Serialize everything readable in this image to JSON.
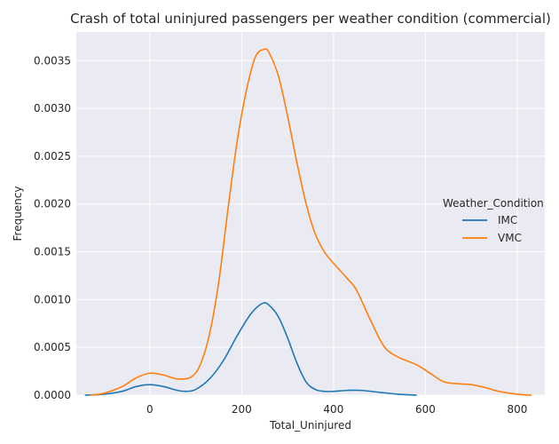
{
  "chart_data": {
    "type": "line",
    "title": "Crash of total uninjured passengers per weather condition (commercial)",
    "xlabel": "Total_Uninjured",
    "ylabel": "Frequency",
    "xlim": [
      -160,
      860
    ],
    "ylim": [
      0,
      0.0038
    ],
    "xticks": [
      0,
      200,
      400,
      600,
      800
    ],
    "xtick_labels": [
      "0",
      "200",
      "400",
      "600",
      "800"
    ],
    "yticks": [
      0,
      0.0005,
      0.001,
      0.0015,
      0.002,
      0.0025,
      0.003,
      0.0035
    ],
    "ytick_labels": [
      "0.0000",
      "0.0005",
      "0.0010",
      "0.0015",
      "0.0020",
      "0.0025",
      "0.0030",
      "0.0035"
    ],
    "grid": true,
    "legend": {
      "title": "Weather_Condition",
      "placement": "center-right"
    },
    "series": [
      {
        "name": "IMC",
        "color": "#1f77b4",
        "x": [
          -140,
          -100,
          -60,
          -30,
          0,
          30,
          60,
          80,
          100,
          130,
          160,
          190,
          220,
          245,
          260,
          280,
          300,
          320,
          340,
          360,
          380,
          400,
          430,
          460,
          500,
          540,
          580
        ],
        "y": [
          0,
          1e-05,
          4e-05,
          9e-05,
          0.00011,
          9e-05,
          5e-05,
          4e-05,
          6e-05,
          0.00017,
          0.00036,
          0.00062,
          0.00085,
          0.00096,
          0.00094,
          0.00082,
          0.0006,
          0.00034,
          0.00014,
          6e-05,
          4e-05,
          4e-05,
          5e-05,
          5e-05,
          3e-05,
          1e-05,
          0
        ]
      },
      {
        "name": "VMC",
        "color": "#ff7f0e",
        "x": [
          -130,
          -100,
          -60,
          -30,
          0,
          30,
          60,
          90,
          110,
          130,
          150,
          170,
          190,
          210,
          230,
          250,
          260,
          280,
          300,
          320,
          340,
          360,
          380,
          400,
          430,
          450,
          480,
          510,
          540,
          580,
          610,
          640,
          670,
          700,
          730,
          760,
          800,
          830
        ],
        "y": [
          0,
          2e-05,
          9e-05,
          0.00018,
          0.00023,
          0.00021,
          0.00017,
          0.00019,
          0.00032,
          0.00064,
          0.00118,
          0.00194,
          0.00265,
          0.00318,
          0.00354,
          0.00362,
          0.00358,
          0.00334,
          0.00292,
          0.00244,
          0.00201,
          0.00169,
          0.0015,
          0.00138,
          0.00122,
          0.0011,
          0.00079,
          0.00051,
          0.0004,
          0.00032,
          0.00023,
          0.00014,
          0.00012,
          0.00011,
          8e-05,
          4e-05,
          1e-05,
          0
        ]
      }
    ]
  }
}
